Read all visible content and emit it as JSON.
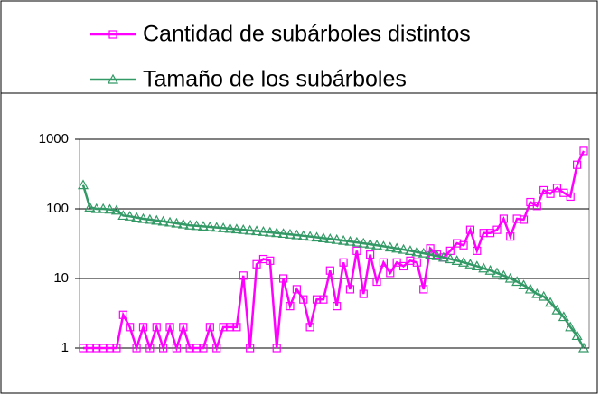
{
  "chart_data": {
    "type": "line",
    "log_scale": true,
    "grid": true,
    "ylim": [
      1,
      1000
    ],
    "yticks": [
      1,
      10,
      100,
      1000
    ],
    "series": [
      {
        "name": "Cantidad de subárboles distintos",
        "color": "#ff00ff",
        "marker": "square",
        "values": [
          1,
          1,
          1,
          1,
          1,
          1,
          3,
          2,
          1,
          2,
          1,
          2,
          1,
          2,
          1,
          2,
          1,
          1,
          1,
          2,
          1,
          2,
          2,
          2,
          11,
          1,
          16,
          19,
          18,
          1,
          10,
          4,
          7,
          5,
          2,
          5,
          5,
          13,
          4,
          17,
          7,
          25,
          6,
          22,
          9,
          17,
          12,
          17,
          15,
          18,
          17,
          7,
          27,
          22,
          20,
          25,
          32,
          30,
          50,
          25,
          45,
          45,
          50,
          72,
          40,
          72,
          70,
          125,
          110,
          185,
          165,
          200,
          170,
          150,
          430,
          680
        ]
      },
      {
        "name": "Tamaño de los subárboles",
        "color": "#339966",
        "marker": "triangle",
        "values": [
          220,
          105,
          100,
          100,
          98,
          95,
          80,
          78,
          75,
          72,
          70,
          68,
          66,
          64,
          62,
          60,
          58,
          57,
          56,
          55,
          54,
          53,
          52,
          51,
          50,
          49,
          48,
          47,
          46,
          45,
          44,
          43,
          42,
          41,
          40,
          39,
          38,
          37,
          36,
          35,
          34,
          33,
          32,
          31,
          30,
          29,
          28,
          27,
          26,
          25,
          24,
          23,
          22,
          21,
          20,
          19,
          18,
          17,
          16,
          15,
          14,
          13,
          12,
          11,
          10,
          9,
          8,
          7,
          6,
          5.5,
          4.5,
          3.5,
          2.8,
          2,
          1.5,
          1
        ]
      }
    ]
  }
}
